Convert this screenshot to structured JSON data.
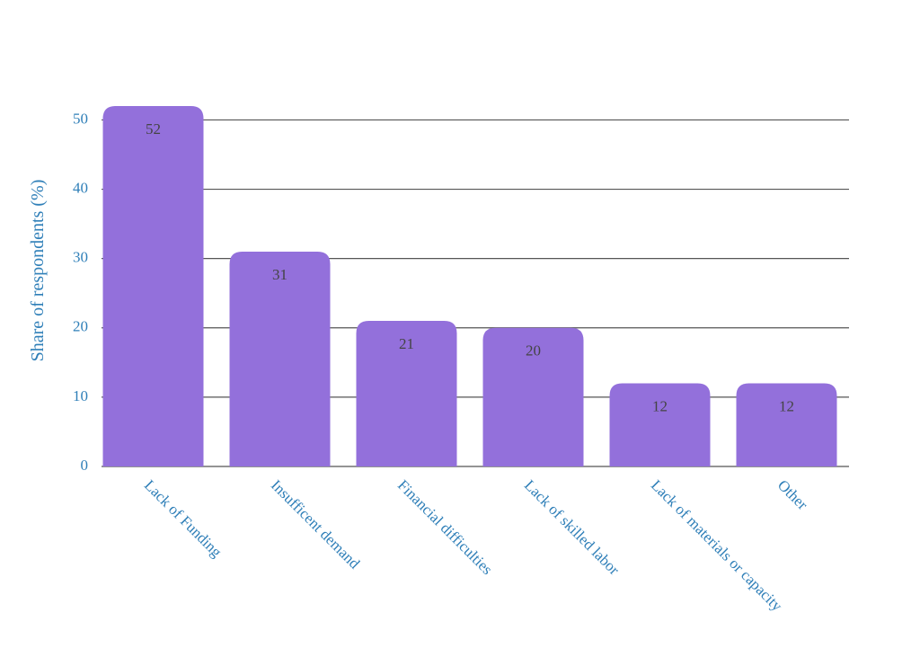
{
  "chart_data": {
    "type": "bar",
    "y_label": "Share of respondents (%)",
    "categories": [
      "Lack of Funding",
      "Insufficent demand",
      "Financial difficulties",
      "Lack of skilled labor",
      "Lack of materials or capacity",
      "Other"
    ],
    "values": [
      52,
      31,
      21,
      20,
      12,
      12
    ],
    "color": "#9370db",
    "ylim": [
      0,
      52
    ],
    "yticks": [
      0,
      10,
      20,
      30,
      40,
      50
    ],
    "grid": true
  }
}
